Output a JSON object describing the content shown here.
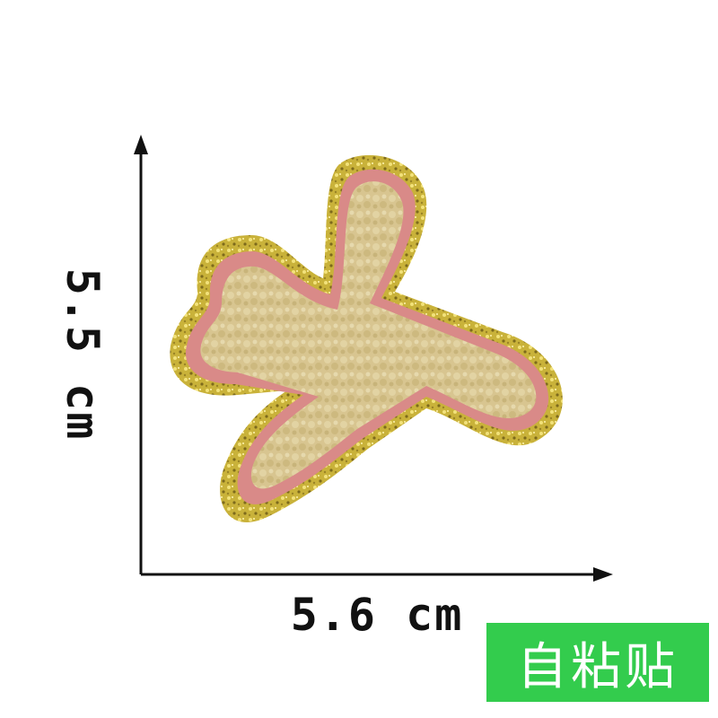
{
  "dimensions": {
    "height_label": "5.5 cm",
    "width_label": "5.6 cm"
  },
  "badge": {
    "text": "自粘贴",
    "color": "#33cc4d"
  },
  "product": {
    "icon": "airplane-patch",
    "colors": {
      "glitter_border": "#c9b23a",
      "pink_outline": "#d98a88",
      "chenille_fill": "#d8c590"
    }
  }
}
